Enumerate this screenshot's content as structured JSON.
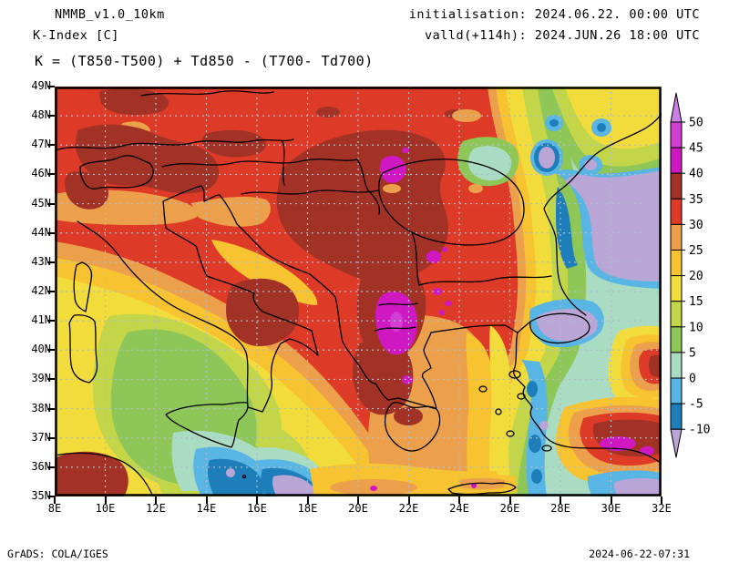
{
  "header": {
    "model": "NMMB_v1.0_10km",
    "variable": "K-Index [C]",
    "formula": "K = (T850-T500) + Td850 - (T700- Td700)",
    "init_line": "initialisation: 2024.06.22. 00:00 UTC",
    "valid_line": "valld(+114h): 2024.JUN.26 18:00 UTC"
  },
  "footer": {
    "left": "GrADS: COLA/IGES",
    "right": "2024-06-22-07:31"
  },
  "axes": {
    "y_ticks": [
      "49N",
      "48N",
      "47N",
      "46N",
      "45N",
      "44N",
      "43N",
      "42N",
      "41N",
      "40N",
      "39N",
      "38N",
      "37N",
      "36N",
      "35N"
    ],
    "x_ticks": [
      "8E",
      "10E",
      "12E",
      "14E",
      "16E",
      "18E",
      "20E",
      "22E",
      "24E",
      "26E",
      "28E",
      "30E",
      "32E"
    ]
  },
  "colorbar": {
    "labels": [
      "50",
      "45",
      "40",
      "35",
      "30",
      "25",
      "20",
      "15",
      "10",
      "5",
      "0",
      "-5",
      "-10"
    ]
  },
  "chart_data": {
    "type": "heatmap",
    "subtype": "filled-contour-weather-map",
    "title": "K-Index [C]",
    "model": "NMMB_v1.0_10km",
    "initialisation": "2024.06.22. 00:00 UTC",
    "valid": "2024.JUN.26 18:00 UTC (+114h)",
    "formula": "K = (T850-T500) + Td850 - (T700- Td700)",
    "units": "C",
    "x_axis": {
      "label": "longitude",
      "range": [
        8,
        32
      ],
      "tick_step_deg": 2,
      "tick_labels": [
        "8E",
        "10E",
        "12E",
        "14E",
        "16E",
        "18E",
        "20E",
        "22E",
        "24E",
        "26E",
        "28E",
        "30E",
        "32E"
      ]
    },
    "y_axis": {
      "label": "latitude",
      "range": [
        35,
        49
      ],
      "tick_step_deg": 1,
      "tick_labels": [
        "35N",
        "36N",
        "37N",
        "38N",
        "39N",
        "40N",
        "41N",
        "42N",
        "43N",
        "44N",
        "45N",
        "46N",
        "47N",
        "48N",
        "49N"
      ]
    },
    "grid": {
      "shown": true,
      "style": "dashed",
      "x_every_deg": 2,
      "y_every_deg": 1
    },
    "legend_position": "right-colorbar-with-end-arrows",
    "contour_levels": [
      -10,
      -5,
      0,
      5,
      10,
      15,
      20,
      25,
      30,
      35,
      40,
      45,
      50
    ],
    "band_names": [
      "<-10",
      "-10--5",
      "-5-0",
      "0-5",
      "5-10",
      "10-15",
      "15-20",
      "20-25",
      "25-30",
      "30-35",
      "35-40",
      "40-45",
      "45-50",
      ">50"
    ],
    "band_colors": [
      "#b9a6d6",
      "#1d7eba",
      "#58b5e4",
      "#a9dcc3",
      "#8ec657",
      "#c3d64a",
      "#f2dc3c",
      "#f7c331",
      "#eda04b",
      "#dd3b28",
      "#a33226",
      "#cf17c2",
      "#d23ed2",
      "#c97fe3"
    ],
    "features": [
      {
        "region": "Central Europe / Alps / N Balkans (9-23E, 44-49N)",
        "value_range": "30-40",
        "note": "broad red field with dark-red 35-40 cores over the Alps and central Balkans"
      },
      {
        "region": "Hungary/Romania border (~21E, 46N) and W Bulgaria (~23E, 43N)",
        "value_range": "40-45",
        "note": "small magenta maxima"
      },
      {
        "region": "Albania / N Macedonia (20.5-21.5E, 41-42.5N)",
        "value_range": "40-45",
        "note": "largest magenta maximum"
      },
      {
        "region": "Po valley / N Adriatic",
        "value_range": "25-30",
        "note": "orange band"
      },
      {
        "region": "Central Italy and mid Adriatic",
        "value_range": "15-25",
        "note": "yellow/gold"
      },
      {
        "region": "Tyrrhenian Sea around Sardinia-Sicily",
        "value_range": "0-15",
        "note": "green core with cyan patches"
      },
      {
        "region": "Sea south of Sicily / Ionian (15-18.5E, 35-36.5N)",
        "value_range": "<-10 to 0",
        "note": "blue cores with small lavender minima"
      },
      {
        "region": "NW Africa corner (8-10.5E, 35-37N)",
        "value_range": "30-40",
        "note": "dark-red maximum"
      },
      {
        "region": "W Greece (20-22.5E, 37.5-40.5N)",
        "value_range": "35-45",
        "note": "dark red with small magenta spots"
      },
      {
        "region": "Aegean Sea",
        "value_range": "15-30",
        "note": "orange-gold-yellow bands decreasing eastward"
      },
      {
        "region": "E of ~25E sharp gradient",
        "value_range": "30 down to <0",
        "note": "tight rainbow transition from red through yellow/green to cyan"
      },
      {
        "region": "Romania / Moldova / NE corner",
        "value_range": "-10 to 15",
        "note": "teal with blue spots and small lavender minima"
      },
      {
        "region": "W Black Sea and Marmara (27.5-32E, 40.5-45N)",
        "value_range": "<-10",
        "note": "large lavender minimum"
      },
      {
        "region": "SW Turkey (28.5-32E, 36-38.5N)",
        "value_range": "35-45",
        "note": "dark-red/magenta maximum"
      },
      {
        "region": "SE corner sea (30-32E, 35-36.5N)",
        "value_range": "<-10 to -5",
        "note": "blue/lavender minimum"
      },
      {
        "region": "NE corner (29-32E, 47-49N)",
        "value_range": "15-20",
        "note": "yellow patch"
      }
    ]
  }
}
